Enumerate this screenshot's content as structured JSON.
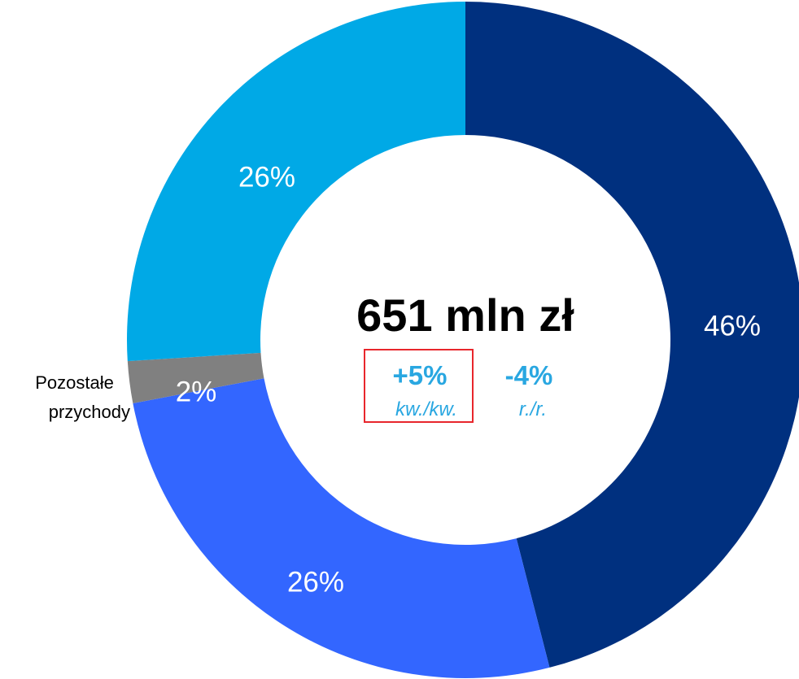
{
  "chart_data": {
    "type": "pie",
    "donut": true,
    "slices": [
      {
        "value": 46,
        "label": "46%",
        "color": "#00307F"
      },
      {
        "value": 26,
        "label": "26%",
        "color": "#3366FF"
      },
      {
        "value": 2,
        "label": "2%",
        "color": "#808080",
        "category": "Pozostałe przychody"
      },
      {
        "value": 26,
        "label": "26%",
        "color": "#00A9E6"
      }
    ],
    "center": {
      "total": "651 mln zł",
      "changes": [
        {
          "value": "+5%",
          "period": "kw./kw.",
          "color": "#29A7E1",
          "highlight_color": "#E8262C",
          "highlighted": true
        },
        {
          "value": "-4%",
          "period": "r./r.",
          "color": "#29A7E1",
          "highlighted": false
        }
      ]
    }
  }
}
